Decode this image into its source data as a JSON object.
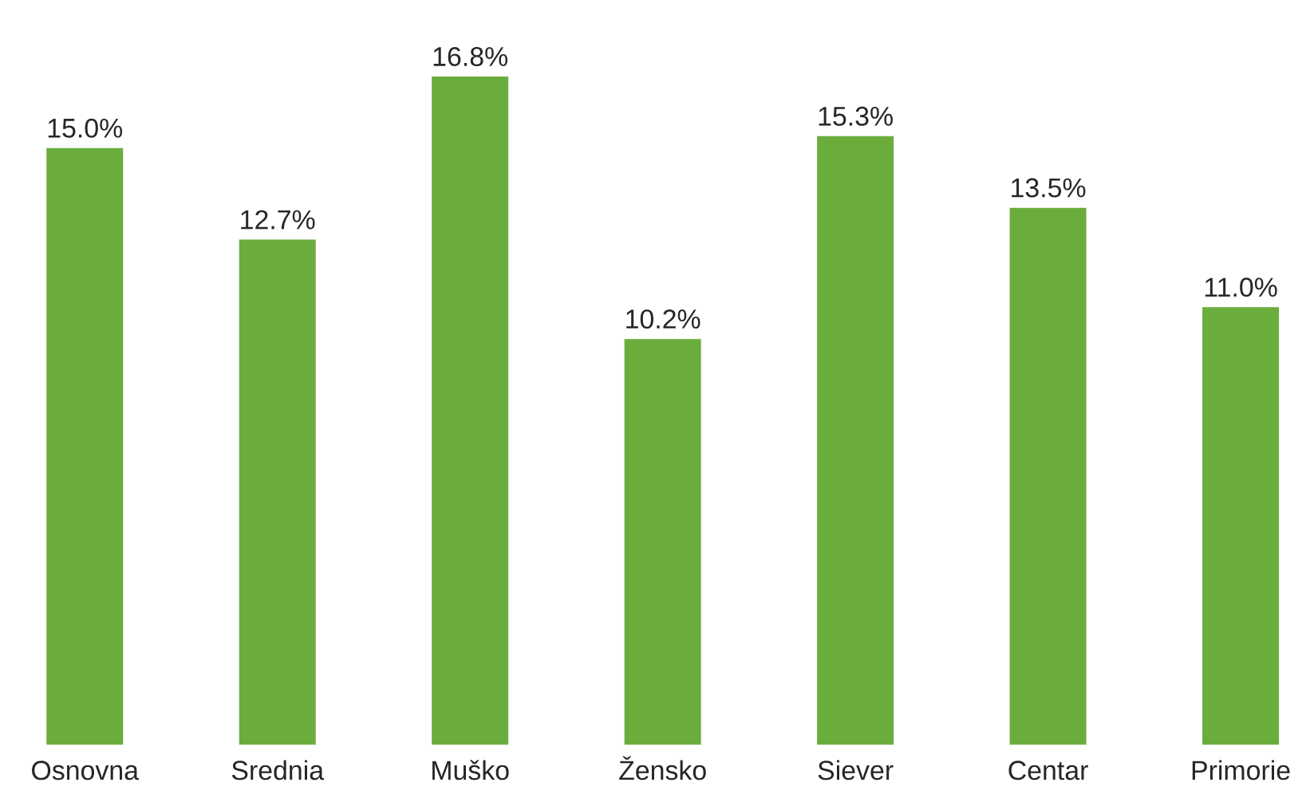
{
  "chart_data": {
    "type": "bar",
    "categories": [
      "Osnovna",
      "Srednia",
      "Muško",
      "Žensko",
      "Siever",
      "Centar",
      "Primorie"
    ],
    "values": [
      15.0,
      12.7,
      16.8,
      10.2,
      15.3,
      13.5,
      11.0
    ],
    "value_labels": [
      "15.0%",
      "12.7%",
      "16.8%",
      "10.2%",
      "15.3%",
      "13.5%",
      "11.0%"
    ],
    "color": "#6aad3d"
  }
}
